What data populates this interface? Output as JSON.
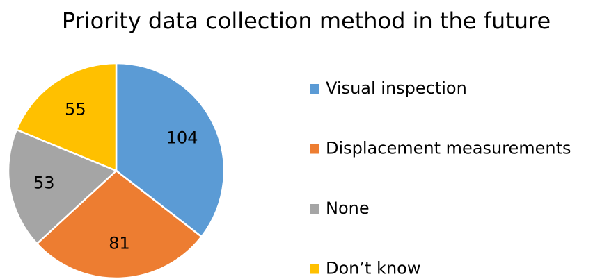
{
  "chart_data": {
    "type": "pie",
    "title": "Priority data collection method in the future",
    "categories": [
      "Visual inspection",
      "Displacement measurements",
      "None",
      "Don’t know"
    ],
    "values": [
      104,
      81,
      53,
      55
    ],
    "colors": [
      "#5b9bd5",
      "#ed7d31",
      "#a5a5a5",
      "#ffc000"
    ],
    "legend": "right"
  }
}
